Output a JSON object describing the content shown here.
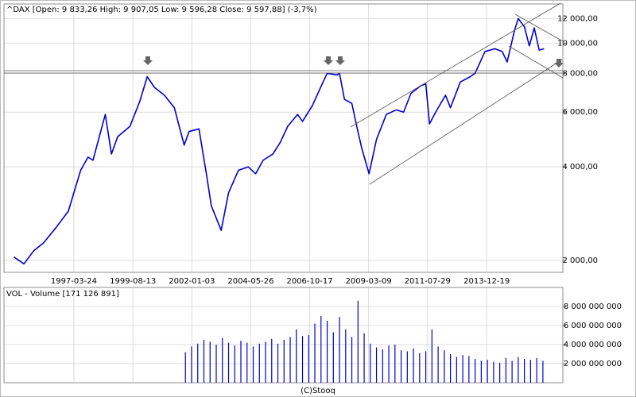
{
  "chart_data": [
    {
      "type": "line",
      "title": "^DAX [Open: 9 833,26  High: 9 907,05  Low: 9 596,28  Close: 9 597,88] (-3,7%)",
      "color": "#0000cc",
      "log": true,
      "grid": true,
      "x": [
        1994.8,
        1995.2,
        1995.6,
        1996.0,
        1996.5,
        1997.0,
        1997.5,
        1997.8,
        1998.0,
        1998.5,
        1998.75,
        1999.0,
        1999.5,
        1999.9,
        2000.2,
        2000.5,
        2000.9,
        2001.3,
        2001.7,
        2001.9,
        2002.3,
        2002.6,
        2002.8,
        2003.2,
        2003.5,
        2003.9,
        2004.3,
        2004.6,
        2004.9,
        2005.3,
        2005.6,
        2005.9,
        2006.3,
        2006.5,
        2006.9,
        2007.3,
        2007.5,
        2007.9,
        2008.0,
        2008.2,
        2008.5,
        2008.7,
        2008.9,
        2009.2,
        2009.5,
        2009.9,
        2010.3,
        2010.6,
        2010.9,
        2011.3,
        2011.5,
        2011.65,
        2011.9,
        2012.3,
        2012.5,
        2012.9,
        2013.3,
        2013.5,
        2013.9,
        2014.3,
        2014.6,
        2014.8,
        2015.1,
        2015.25,
        2015.5,
        2015.7,
        2015.9,
        2016.1,
        2016.3
      ],
      "values": [
        2050,
        1950,
        2150,
        2280,
        2550,
        2880,
        3900,
        4300,
        4200,
        5900,
        4400,
        5000,
        5400,
        6500,
        7800,
        7200,
        6800,
        6200,
        4700,
        5200,
        5300,
        3800,
        3000,
        2500,
        3300,
        3900,
        4000,
        3800,
        4200,
        4400,
        4800,
        5400,
        5900,
        5600,
        6300,
        7400,
        8000,
        7900,
        8000,
        6600,
        6400,
        5400,
        4600,
        3800,
        4900,
        5900,
        6100,
        6000,
        6900,
        7300,
        7400,
        5500,
        6000,
        6800,
        6200,
        7500,
        7800,
        8000,
        9400,
        9600,
        9400,
        8700,
        11000,
        12000,
        11300,
        9800,
        11200,
        9500,
        9600
      ],
      "xlim": [
        1994.39,
        2017.06
      ],
      "xticks": [
        {
          "value": 1997.225,
          "label": "1997-03-24"
        },
        {
          "value": 1999.62,
          "label": "1999-08-13"
        },
        {
          "value": 2002.01,
          "label": "2002-01-03"
        },
        {
          "value": 2004.4,
          "label": "2004-05-26"
        },
        {
          "value": 2006.79,
          "label": "2006-10-17"
        },
        {
          "value": 2009.18,
          "label": "2009-03-09"
        },
        {
          "value": 2011.57,
          "label": "2011-07-29"
        },
        {
          "value": 2013.97,
          "label": "2013-12-19"
        }
      ],
      "ylim": [
        1831,
        13372
      ],
      "yticks": [
        {
          "value": 2000,
          "label": "2 000,00"
        },
        {
          "value": 4000,
          "label": "4 000,00"
        },
        {
          "value": 6000,
          "label": "6 000,00"
        },
        {
          "value": 8000,
          "label": "8 000,00"
        },
        {
          "value": 10000,
          "label": "10 000,00"
        },
        {
          "value": 12000,
          "label": "12 000,00"
        }
      ]
    },
    {
      "type": "bar",
      "title": "VOL - Volume [171 126 891]",
      "color": "#0000cc",
      "x": [
        2001.75,
        2002.0,
        2002.25,
        2002.5,
        2002.75,
        2003.0,
        2003.25,
        2003.5,
        2003.75,
        2004.0,
        2004.25,
        2004.5,
        2004.75,
        2005.0,
        2005.25,
        2005.5,
        2005.75,
        2006.0,
        2006.25,
        2006.5,
        2006.75,
        2007.0,
        2007.25,
        2007.5,
        2007.75,
        2008.0,
        2008.25,
        2008.5,
        2008.75,
        2009.0,
        2009.25,
        2009.5,
        2009.75,
        2010.0,
        2010.25,
        2010.5,
        2010.75,
        2011.0,
        2011.25,
        2011.5,
        2011.75,
        2012.0,
        2012.25,
        2012.5,
        2012.75,
        2013.0,
        2013.25,
        2013.5,
        2013.75,
        2014.0,
        2014.25,
        2014.5,
        2014.75,
        2015.0,
        2015.25,
        2015.5,
        2015.75,
        2016.0,
        2016.25
      ],
      "values": [
        3200000000,
        3800000000,
        4100000000,
        4500000000,
        4300000000,
        4000000000,
        4700000000,
        4200000000,
        3900000000,
        4400000000,
        4200000000,
        3800000000,
        4100000000,
        4300000000,
        4600000000,
        4100000000,
        4500000000,
        4800000000,
        5600000000,
        4900000000,
        5000000000,
        6200000000,
        7000000000,
        6500000000,
        5300000000,
        6900000000,
        5600000000,
        4800000000,
        8600000000,
        5200000000,
        4100000000,
        3700000000,
        3500000000,
        3900000000,
        4000000000,
        3400000000,
        3300000000,
        3600000000,
        3100000000,
        3300000000,
        5600000000,
        3800000000,
        3400000000,
        3000000000,
        2700000000,
        2900000000,
        2800000000,
        2500000000,
        2300000000,
        2400000000,
        2200000000,
        2100000000,
        2600000000,
        2300000000,
        2700000000,
        2500000000,
        2400000000,
        2600000000,
        2300000000
      ],
      "xlim": [
        1994.39,
        2017.06
      ],
      "ylim": [
        0,
        10000000000
      ],
      "yticks": [
        {
          "value": 2000000000,
          "label": "2 000 000 000"
        },
        {
          "value": 4000000000,
          "label": "4 000 000 000"
        },
        {
          "value": 6000000000,
          "label": "6 000 000 000"
        },
        {
          "value": 8000000000,
          "label": "8 000 000 000"
        }
      ]
    }
  ],
  "footer": "(C)Stooq"
}
